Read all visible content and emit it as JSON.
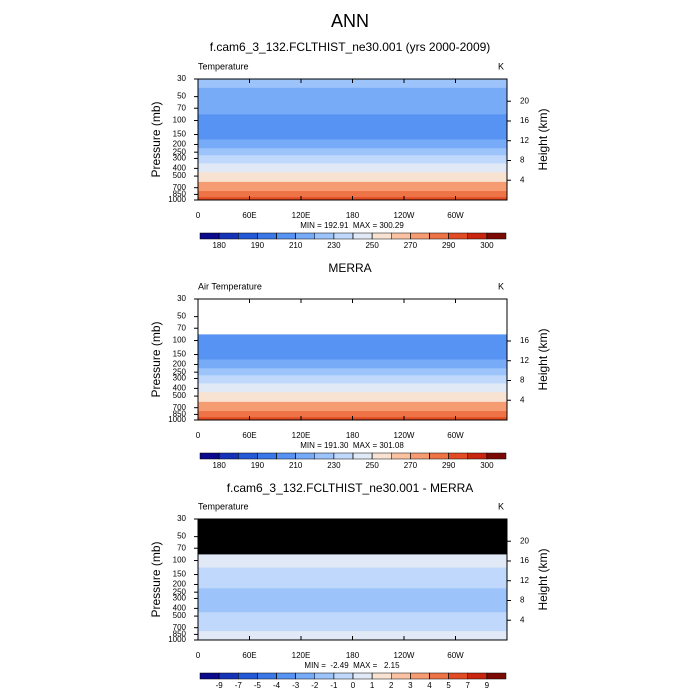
{
  "title": "ANN",
  "chart_data": [
    {
      "type": "contour",
      "title": "f.cam6_3_132.FCLTHIST_ne30.001 (yrs 2000-2009)",
      "left_label": "Temperature",
      "units_label": "K",
      "ylabel": "Pressure (mb)",
      "y2label": "Height (km)",
      "log_y": true,
      "xlim": [
        0,
        360
      ],
      "xticks": [
        0,
        {
          "value": 60,
          "label": "60E"
        },
        {
          "value": 120,
          "label": "120E"
        },
        180,
        {
          "value": 240,
          "label": "120W"
        },
        {
          "value": 300,
          "label": "60W"
        }
      ],
      "ylim": [
        1000,
        30
      ],
      "yticks": [
        30,
        50,
        70,
        100,
        150,
        200,
        250,
        300,
        400,
        500,
        700,
        850,
        1000
      ],
      "y2lim": [
        0,
        24.5
      ],
      "y2ticks": [
        4,
        8,
        12,
        16,
        20
      ],
      "stats": "MIN = 192.91  MAX = 300.29",
      "y": [
        30,
        50,
        70,
        100,
        150,
        200,
        250,
        300,
        400,
        500,
        700,
        850,
        1000
      ],
      "values": [
        225,
        218,
        210,
        203,
        208,
        215,
        222,
        230,
        245,
        256,
        270,
        280,
        290
      ],
      "missing_color": "#ffffff",
      "colorbar": {
        "levels": [
          180,
          185,
          190,
          200,
          210,
          220,
          230,
          240,
          250,
          260,
          270,
          280,
          290,
          295,
          300
        ],
        "ticks": [
          180,
          190,
          210,
          230,
          250,
          270,
          290,
          300
        ],
        "colors": [
          "#0b0a8c",
          "#1433b8",
          "#2359d6",
          "#3a78e8",
          "#5793f2",
          "#77abf7",
          "#9cc3fa",
          "#c0d8fb",
          "#e0e9f5",
          "#f8e3d2",
          "#f9c3a3",
          "#f59c72",
          "#ee7447",
          "#e14c24",
          "#c8260e",
          "#7b0a04"
        ]
      }
    },
    {
      "type": "contour",
      "title": "MERRA",
      "left_label": "Air Temperature",
      "units_label": "K",
      "ylabel": "Pressure (mb)",
      "y2label": "Height (km)",
      "log_y": true,
      "xlim": [
        0,
        360
      ],
      "xticks": [
        0,
        {
          "value": 60,
          "label": "60E"
        },
        {
          "value": 120,
          "label": "120E"
        },
        180,
        {
          "value": 240,
          "label": "120W"
        },
        {
          "value": 300,
          "label": "60W"
        }
      ],
      "ylim": [
        1000,
        30
      ],
      "yticks": [
        30,
        50,
        70,
        100,
        150,
        200,
        250,
        300,
        400,
        500,
        700,
        850,
        1000
      ],
      "y2lim": [
        0,
        24.5
      ],
      "y2ticks": [
        4,
        8,
        12,
        16
      ],
      "stats": "MIN = 191.30  MAX = 301.08",
      "y": [
        30,
        50,
        70,
        100,
        150,
        200,
        250,
        300,
        400,
        500,
        700,
        850,
        1000
      ],
      "values": [
        null,
        null,
        null,
        202,
        209,
        216,
        223,
        230,
        245,
        256,
        270,
        281,
        291
      ],
      "missing_color": "#ffffff",
      "colorbar": {
        "levels": [
          180,
          185,
          190,
          200,
          210,
          220,
          230,
          240,
          250,
          260,
          270,
          280,
          290,
          295,
          300
        ],
        "ticks": [
          180,
          190,
          210,
          230,
          250,
          270,
          290,
          300
        ],
        "colors": [
          "#0b0a8c",
          "#1433b8",
          "#2359d6",
          "#3a78e8",
          "#5793f2",
          "#77abf7",
          "#9cc3fa",
          "#c0d8fb",
          "#e0e9f5",
          "#f8e3d2",
          "#f9c3a3",
          "#f59c72",
          "#ee7447",
          "#e14c24",
          "#c8260e",
          "#7b0a04"
        ]
      }
    },
    {
      "type": "contour",
      "title": "f.cam6_3_132.FCLTHIST_ne30.001 - MERRA",
      "left_label": "Temperature",
      "units_label": "K",
      "ylabel": "Pressure (mb)",
      "y2label": "Height (km)",
      "log_y": true,
      "xlim": [
        0,
        360
      ],
      "xticks": [
        0,
        {
          "value": 60,
          "label": "60E"
        },
        {
          "value": 120,
          "label": "120E"
        },
        180,
        {
          "value": 240,
          "label": "120W"
        },
        {
          "value": 300,
          "label": "60W"
        }
      ],
      "ylim": [
        1000,
        30
      ],
      "yticks": [
        30,
        50,
        70,
        100,
        150,
        200,
        250,
        300,
        400,
        500,
        700,
        850,
        1000
      ],
      "y2lim": [
        0,
        24.5
      ],
      "y2ticks": [
        4,
        8,
        12,
        16,
        20
      ],
      "stats": "MIN =  -2.49  MAX =   2.15",
      "y": [
        30,
        50,
        70,
        100,
        150,
        200,
        250,
        300,
        400,
        500,
        700,
        850,
        1000
      ],
      "values": [
        null,
        null,
        null,
        0.5,
        -0.5,
        -1,
        -1.5,
        -2,
        -1.5,
        -1,
        -0.5,
        0.5,
        0.2
      ],
      "missing_color": "#000000",
      "colorbar": {
        "levels": [
          -9,
          -7,
          -5,
          -4,
          -3,
          -2,
          -1,
          0,
          1,
          2,
          3,
          4,
          5,
          7,
          9
        ],
        "ticks": [
          -9,
          -7,
          -5,
          -4,
          -3,
          -2,
          -1,
          0,
          1,
          2,
          3,
          4,
          5,
          7,
          9
        ],
        "colors": [
          "#0b0a8c",
          "#1433b8",
          "#2359d6",
          "#3a78e8",
          "#5793f2",
          "#77abf7",
          "#9cc3fa",
          "#c0d8fb",
          "#e0e9f5",
          "#f8e3d2",
          "#f9c3a3",
          "#f59c72",
          "#ee7447",
          "#e14c24",
          "#c8260e",
          "#7b0a04"
        ]
      }
    }
  ]
}
